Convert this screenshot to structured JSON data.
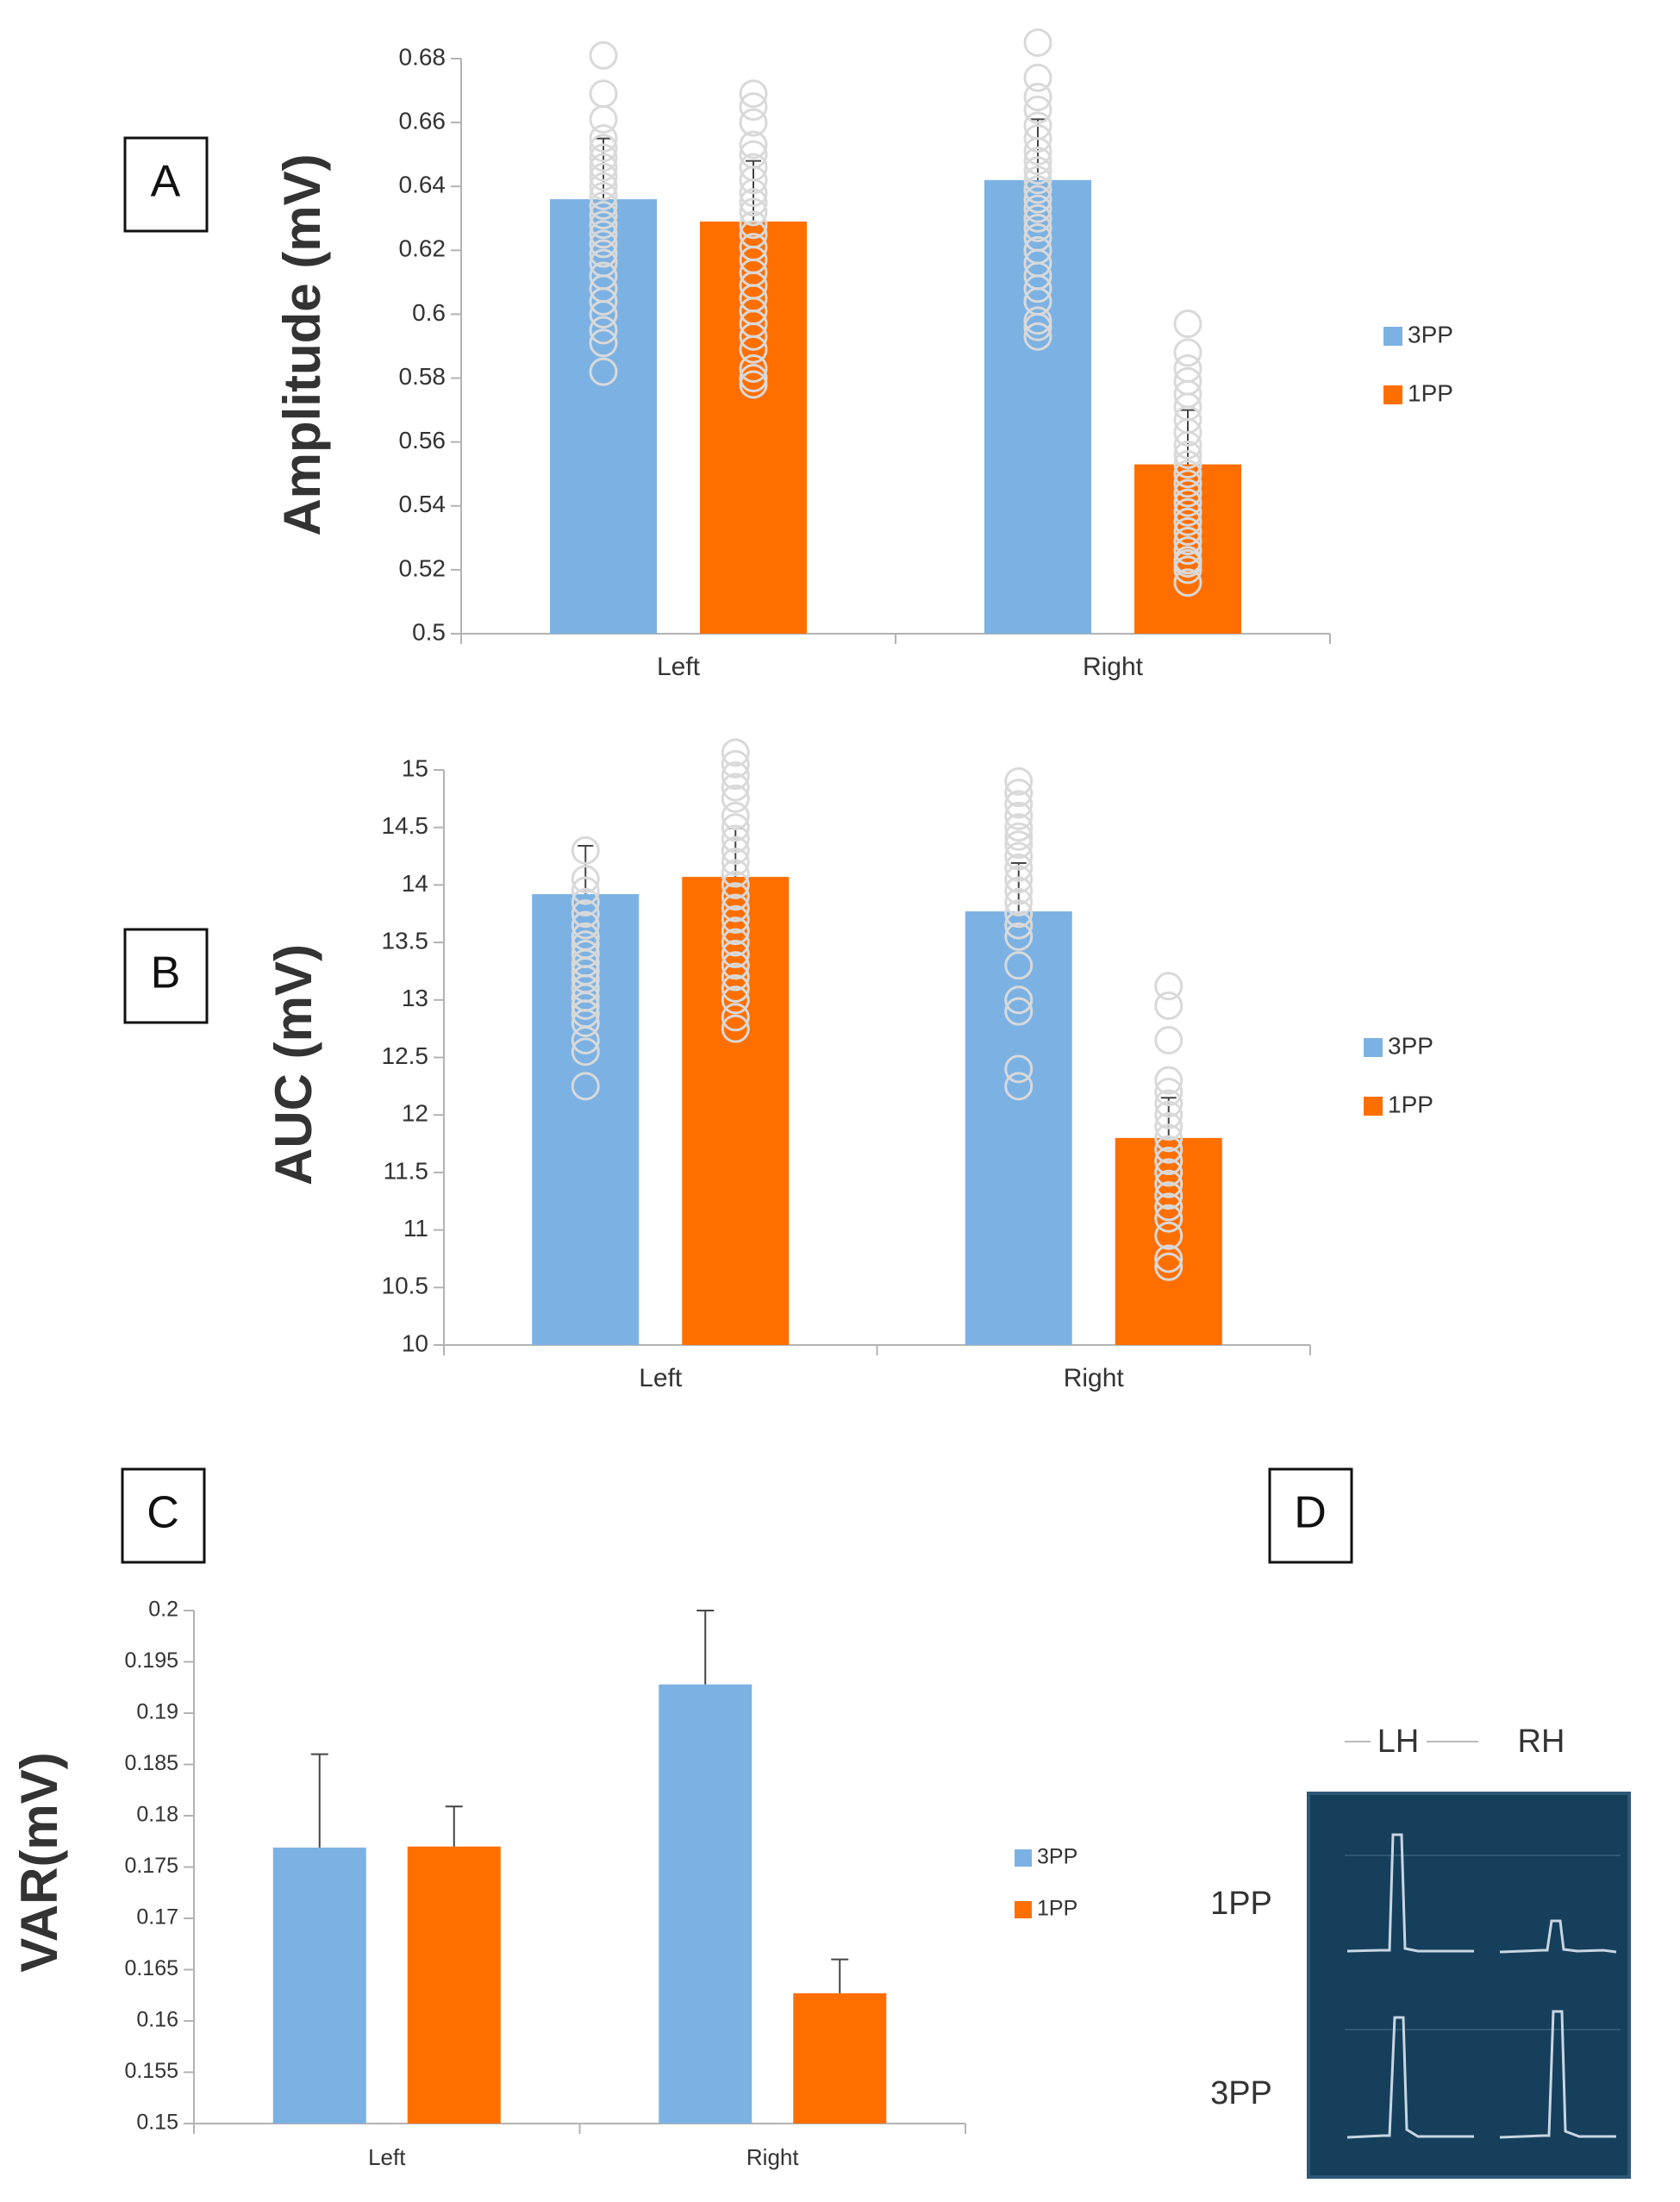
{
  "colors": {
    "series_3pp": "#7cb2e3",
    "series_1pp": "#ff6f00",
    "marker": "#d9d9d9",
    "axis": "#b3b3b3",
    "inset_bg": "#163f5c",
    "inset_trace": "#c8d6e2"
  },
  "panels": {
    "A": "A",
    "B": "B",
    "C": "C",
    "D": "D"
  },
  "inset": {
    "col_labels": [
      "LH",
      "RH"
    ],
    "row_labels": [
      "1PP",
      "3PP"
    ]
  },
  "chart_data": [
    {
      "id": "A",
      "type": "bar",
      "title": "",
      "ylabel": "Amplitude (mV)",
      "xlabel": "",
      "categories": [
        "Left",
        "Right"
      ],
      "ylim": [
        0.5,
        0.68
      ],
      "yticks": [
        0.5,
        0.52,
        0.54,
        0.56,
        0.58,
        0.6,
        0.62,
        0.64,
        0.66,
        0.68
      ],
      "yticklabels": [
        "0.5",
        "0.52",
        "0.54",
        "0.56",
        "0.58",
        "0.6",
        "0.62",
        "0.64",
        "0.66",
        "0.68"
      ],
      "legend": "right",
      "series": [
        {
          "name": "3PP",
          "values": [
            0.636,
            0.642
          ],
          "errors": [
            0.019,
            0.019
          ],
          "points": [
            [
              0.681,
              0.669,
              0.661,
              0.655,
              0.652,
              0.649,
              0.646,
              0.643,
              0.64,
              0.637,
              0.634,
              0.631,
              0.628,
              0.625,
              0.622,
              0.619,
              0.616,
              0.612,
              0.608,
              0.604,
              0.6,
              0.595,
              0.591,
              0.582
            ],
            [
              0.685,
              0.674,
              0.668,
              0.664,
              0.659,
              0.655,
              0.651,
              0.648,
              0.645,
              0.642,
              0.639,
              0.636,
              0.633,
              0.63,
              0.627,
              0.624,
              0.62,
              0.616,
              0.612,
              0.608,
              0.604,
              0.598,
              0.596,
              0.593
            ]
          ]
        },
        {
          "name": "1PP",
          "values": [
            0.629,
            0.553
          ],
          "errors": [
            0.019,
            0.017
          ],
          "points": [
            [
              0.669,
              0.665,
              0.66,
              0.653,
              0.65,
              0.646,
              0.642,
              0.638,
              0.635,
              0.632,
              0.628,
              0.625,
              0.621,
              0.617,
              0.613,
              0.609,
              0.605,
              0.601,
              0.597,
              0.593,
              0.589,
              0.583,
              0.58,
              0.578
            ],
            [
              0.597,
              0.588,
              0.583,
              0.579,
              0.575,
              0.571,
              0.567,
              0.563,
              0.559,
              0.556,
              0.553,
              0.55,
              0.547,
              0.544,
              0.541,
              0.538,
              0.535,
              0.532,
              0.529,
              0.526,
              0.523,
              0.52,
              0.516,
              0.522
            ]
          ]
        }
      ]
    },
    {
      "id": "B",
      "type": "bar",
      "title": "",
      "ylabel": "AUC (mV)",
      "xlabel": "",
      "categories": [
        "Left",
        "Right"
      ],
      "ylim": [
        10,
        15
      ],
      "yticks": [
        10,
        10.5,
        11,
        11.5,
        12,
        12.5,
        13,
        13.5,
        14,
        14.5,
        15
      ],
      "yticklabels": [
        "10",
        "10.5",
        "11",
        "11.5",
        "12",
        "12.5",
        "13",
        "13.5",
        "14",
        "14.5",
        "15"
      ],
      "legend": "right",
      "series": [
        {
          "name": "3PP",
          "values": [
            13.92,
            13.77
          ],
          "errors": [
            0.42,
            0.42
          ],
          "points": [
            [
              14.3,
              14.05,
              13.95,
              13.85,
              13.75,
              13.65,
              13.55,
              13.48,
              13.4,
              13.32,
              13.25,
              13.18,
              13.1,
              13.02,
              12.95,
              12.88,
              12.8,
              12.65,
              12.55,
              12.25
            ],
            [
              14.9,
              14.8,
              14.7,
              14.6,
              14.5,
              14.42,
              14.35,
              14.25,
              14.15,
              14.05,
              13.95,
              13.85,
              13.75,
              13.65,
              13.55,
              13.3,
              13.0,
              12.9,
              12.4,
              12.25
            ]
          ]
        },
        {
          "name": "1PP",
          "values": [
            14.07,
            11.8
          ],
          "errors": [
            0.42,
            0.35
          ],
          "points": [
            [
              15.15,
              15.05,
              14.95,
              14.85,
              14.75,
              14.6,
              14.5,
              14.4,
              14.3,
              14.2,
              14.1,
              14.0,
              13.9,
              13.8,
              13.7,
              13.6,
              13.5,
              13.4,
              13.3,
              13.2,
              13.1,
              13.0,
              12.85,
              12.75
            ],
            [
              13.12,
              12.95,
              12.65,
              12.3,
              12.2,
              12.1,
              12.0,
              11.9,
              11.8,
              11.7,
              11.6,
              11.5,
              11.4,
              11.3,
              11.2,
              11.1,
              10.95,
              10.75,
              10.68
            ]
          ]
        }
      ]
    },
    {
      "id": "C",
      "type": "bar",
      "title": "",
      "ylabel": "VAR(mV)",
      "xlabel": "",
      "categories": [
        "Left",
        "Right"
      ],
      "ylim": [
        0.15,
        0.2
      ],
      "yticks": [
        0.15,
        0.155,
        0.16,
        0.165,
        0.17,
        0.175,
        0.18,
        0.185,
        0.19,
        0.195,
        0.2
      ],
      "yticklabels": [
        "0.15",
        "0.155",
        "0.16",
        "0.165",
        "0.17",
        "0.175",
        "0.18",
        "0.185",
        "0.19",
        "0.195",
        "0.2"
      ],
      "legend": "right",
      "series": [
        {
          "name": "3PP",
          "values": [
            0.1769,
            0.1928
          ],
          "errors": [
            0.0091,
            0.0072
          ],
          "points": [
            [],
            []
          ]
        },
        {
          "name": "1PP",
          "values": [
            0.177,
            0.1627
          ],
          "errors": [
            0.0039,
            0.0033
          ],
          "points": [
            [],
            []
          ]
        }
      ]
    }
  ]
}
